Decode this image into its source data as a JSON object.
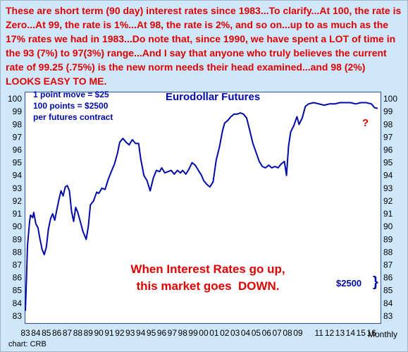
{
  "note": "These are short term (90 day) interest rates since 1983...To clarify...At 100, the rate is Zero...At 99, the rate is 1%...At 98, the rate is 2%, and so on...up to as much as the 17% rates we had in 1983...Do note that, since 1990, we have spent a LOT of time in the 93 (7%) to 97(3%) range...And I say that anyone who truly believes the current rate of 99.25 (.75%) is the new norm needs their head examined...and 98 (2%) LOOKS EASY TO ME.",
  "contract_note": "1 point move = $25\n100 points = $2500\nper futures contract",
  "question_mark": "?",
  "rates_note": "When Interest Rates go up,\nthis market goes  DOWN.",
  "amount": "$2500",
  "frequency": "Monthly",
  "source": "chart: CRB",
  "colors": {
    "background": "#cfe7fb",
    "line": "#000aa8",
    "annotation": "#e00000",
    "frame": "#2f55a8"
  },
  "chart_data": {
    "type": "line",
    "title": "Eurodollar Futures",
    "xlabel": "",
    "ylabel": "",
    "ylim": [
      82.5,
      100.5
    ],
    "xlim": [
      1983,
      2016.8
    ],
    "y_ticks": [
      83,
      84,
      85,
      86,
      87,
      88,
      89,
      90,
      91,
      92,
      93,
      94,
      95,
      96,
      97,
      98,
      99,
      100
    ],
    "y_axis_sides": [
      "left",
      "right"
    ],
    "x_ticks": [
      {
        "label": "83",
        "x": 1983
      },
      {
        "label": "84",
        "x": 1984
      },
      {
        "label": "85",
        "x": 1985
      },
      {
        "label": "86",
        "x": 1986
      },
      {
        "label": "87",
        "x": 1987
      },
      {
        "label": "88",
        "x": 1988
      },
      {
        "label": "89",
        "x": 1989
      },
      {
        "label": "90",
        "x": 1990
      },
      {
        "label": "91",
        "x": 1991
      },
      {
        "label": "92",
        "x": 1992
      },
      {
        "label": "93",
        "x": 1993
      },
      {
        "label": "94",
        "x": 1994
      },
      {
        "label": "95",
        "x": 1995
      },
      {
        "label": "96",
        "x": 1996
      },
      {
        "label": "97",
        "x": 1997
      },
      {
        "label": "98",
        "x": 1998
      },
      {
        "label": "99",
        "x": 1999
      },
      {
        "label": "00",
        "x": 2000
      },
      {
        "label": "01",
        "x": 2001
      },
      {
        "label": "02",
        "x": 2002
      },
      {
        "label": "03",
        "x": 2003
      },
      {
        "label": "04",
        "x": 2004
      },
      {
        "label": "05",
        "x": 2005
      },
      {
        "label": "06",
        "x": 2006
      },
      {
        "label": "07",
        "x": 2007
      },
      {
        "label": "08",
        "x": 2008
      },
      {
        "label": "09",
        "x": 2009
      },
      {
        "label": "11",
        "x": 2011
      },
      {
        "label": "12",
        "x": 2012
      },
      {
        "label": "13",
        "x": 2013
      },
      {
        "label": "14",
        "x": 2014
      },
      {
        "label": "15",
        "x": 2015
      },
      {
        "label": "16",
        "x": 2016
      }
    ],
    "grid": false,
    "series": [
      {
        "x": [
          1983.0,
          1983.1,
          1983.2,
          1983.4,
          1983.5,
          1983.7,
          1983.8,
          1984.0,
          1984.2,
          1984.4,
          1984.6,
          1984.8,
          1985.0,
          1985.2,
          1985.4,
          1985.6,
          1985.8,
          1986.0,
          1986.2,
          1986.4,
          1986.6,
          1986.8,
          1987.0,
          1987.2,
          1987.4,
          1987.6,
          1987.8,
          1988.0,
          1988.2,
          1988.5,
          1988.8,
          1989.0,
          1989.2,
          1989.5,
          1989.8,
          1990.0,
          1990.3,
          1990.6,
          1990.9,
          1991.2,
          1991.5,
          1991.8,
          1992.0,
          1992.3,
          1992.6,
          1992.9,
          1993.2,
          1993.5,
          1993.8,
          1994.0,
          1994.3,
          1994.6,
          1994.9,
          1995.2,
          1995.5,
          1995.8,
          1996.0,
          1996.3,
          1996.6,
          1996.9,
          1997.2,
          1997.5,
          1997.8,
          1998.0,
          1998.3,
          1998.6,
          1998.9,
          1999.2,
          1999.5,
          1999.8,
          2000.0,
          2000.3,
          2000.6,
          2000.9,
          2001.2,
          2001.5,
          2001.8,
          2002.0,
          2002.3,
          2002.6,
          2002.9,
          2003.2,
          2003.5,
          2003.8,
          2004.1,
          2004.4,
          2004.7,
          2005.0,
          2005.3,
          2005.6,
          2005.9,
          2006.2,
          2006.5,
          2006.8,
          2007.1,
          2007.4,
          2007.7,
          2007.9,
          2008.1,
          2008.3,
          2008.6,
          2008.9,
          2009.1,
          2009.4,
          2009.7,
          2010.0,
          2010.5,
          2011.0,
          2011.5,
          2012.0,
          2012.5,
          2013.0,
          2013.5,
          2014.0,
          2014.5,
          2015.0,
          2015.5,
          2016.0,
          2016.3,
          2016.6
        ],
        "y": [
          83.4,
          85.8,
          88.5,
          90.4,
          90.9,
          90.7,
          91.1,
          90.2,
          89.9,
          89.0,
          88.2,
          87.8,
          88.4,
          89.8,
          90.6,
          91.0,
          90.5,
          91.3,
          92.1,
          92.8,
          92.4,
          93.1,
          93.2,
          92.8,
          91.2,
          90.4,
          91.5,
          91.1,
          90.5,
          89.6,
          89.0,
          90.0,
          91.7,
          92.0,
          92.7,
          92.6,
          93.0,
          92.9,
          93.7,
          94.3,
          94.9,
          95.8,
          96.6,
          96.9,
          96.6,
          96.4,
          96.8,
          96.5,
          96.5,
          95.3,
          94.0,
          93.6,
          92.8,
          93.8,
          94.4,
          94.3,
          94.6,
          94.2,
          94.3,
          94.4,
          94.1,
          94.4,
          94.2,
          94.4,
          94.1,
          94.5,
          95.0,
          94.8,
          94.4,
          94.0,
          93.6,
          93.3,
          93.1,
          93.5,
          95.2,
          96.2,
          97.5,
          98.1,
          98.3,
          98.6,
          98.8,
          98.8,
          98.9,
          98.8,
          98.5,
          97.5,
          96.5,
          95.8,
          95.1,
          94.7,
          94.6,
          94.8,
          94.6,
          94.7,
          94.6,
          94.9,
          95.1,
          94.0,
          96.3,
          97.4,
          97.9,
          98.6,
          98.0,
          98.5,
          99.4,
          99.6,
          99.7,
          99.6,
          99.5,
          99.6,
          99.6,
          99.7,
          99.7,
          99.7,
          99.6,
          99.7,
          99.7,
          99.6,
          99.3,
          99.25
        ]
      }
    ]
  }
}
